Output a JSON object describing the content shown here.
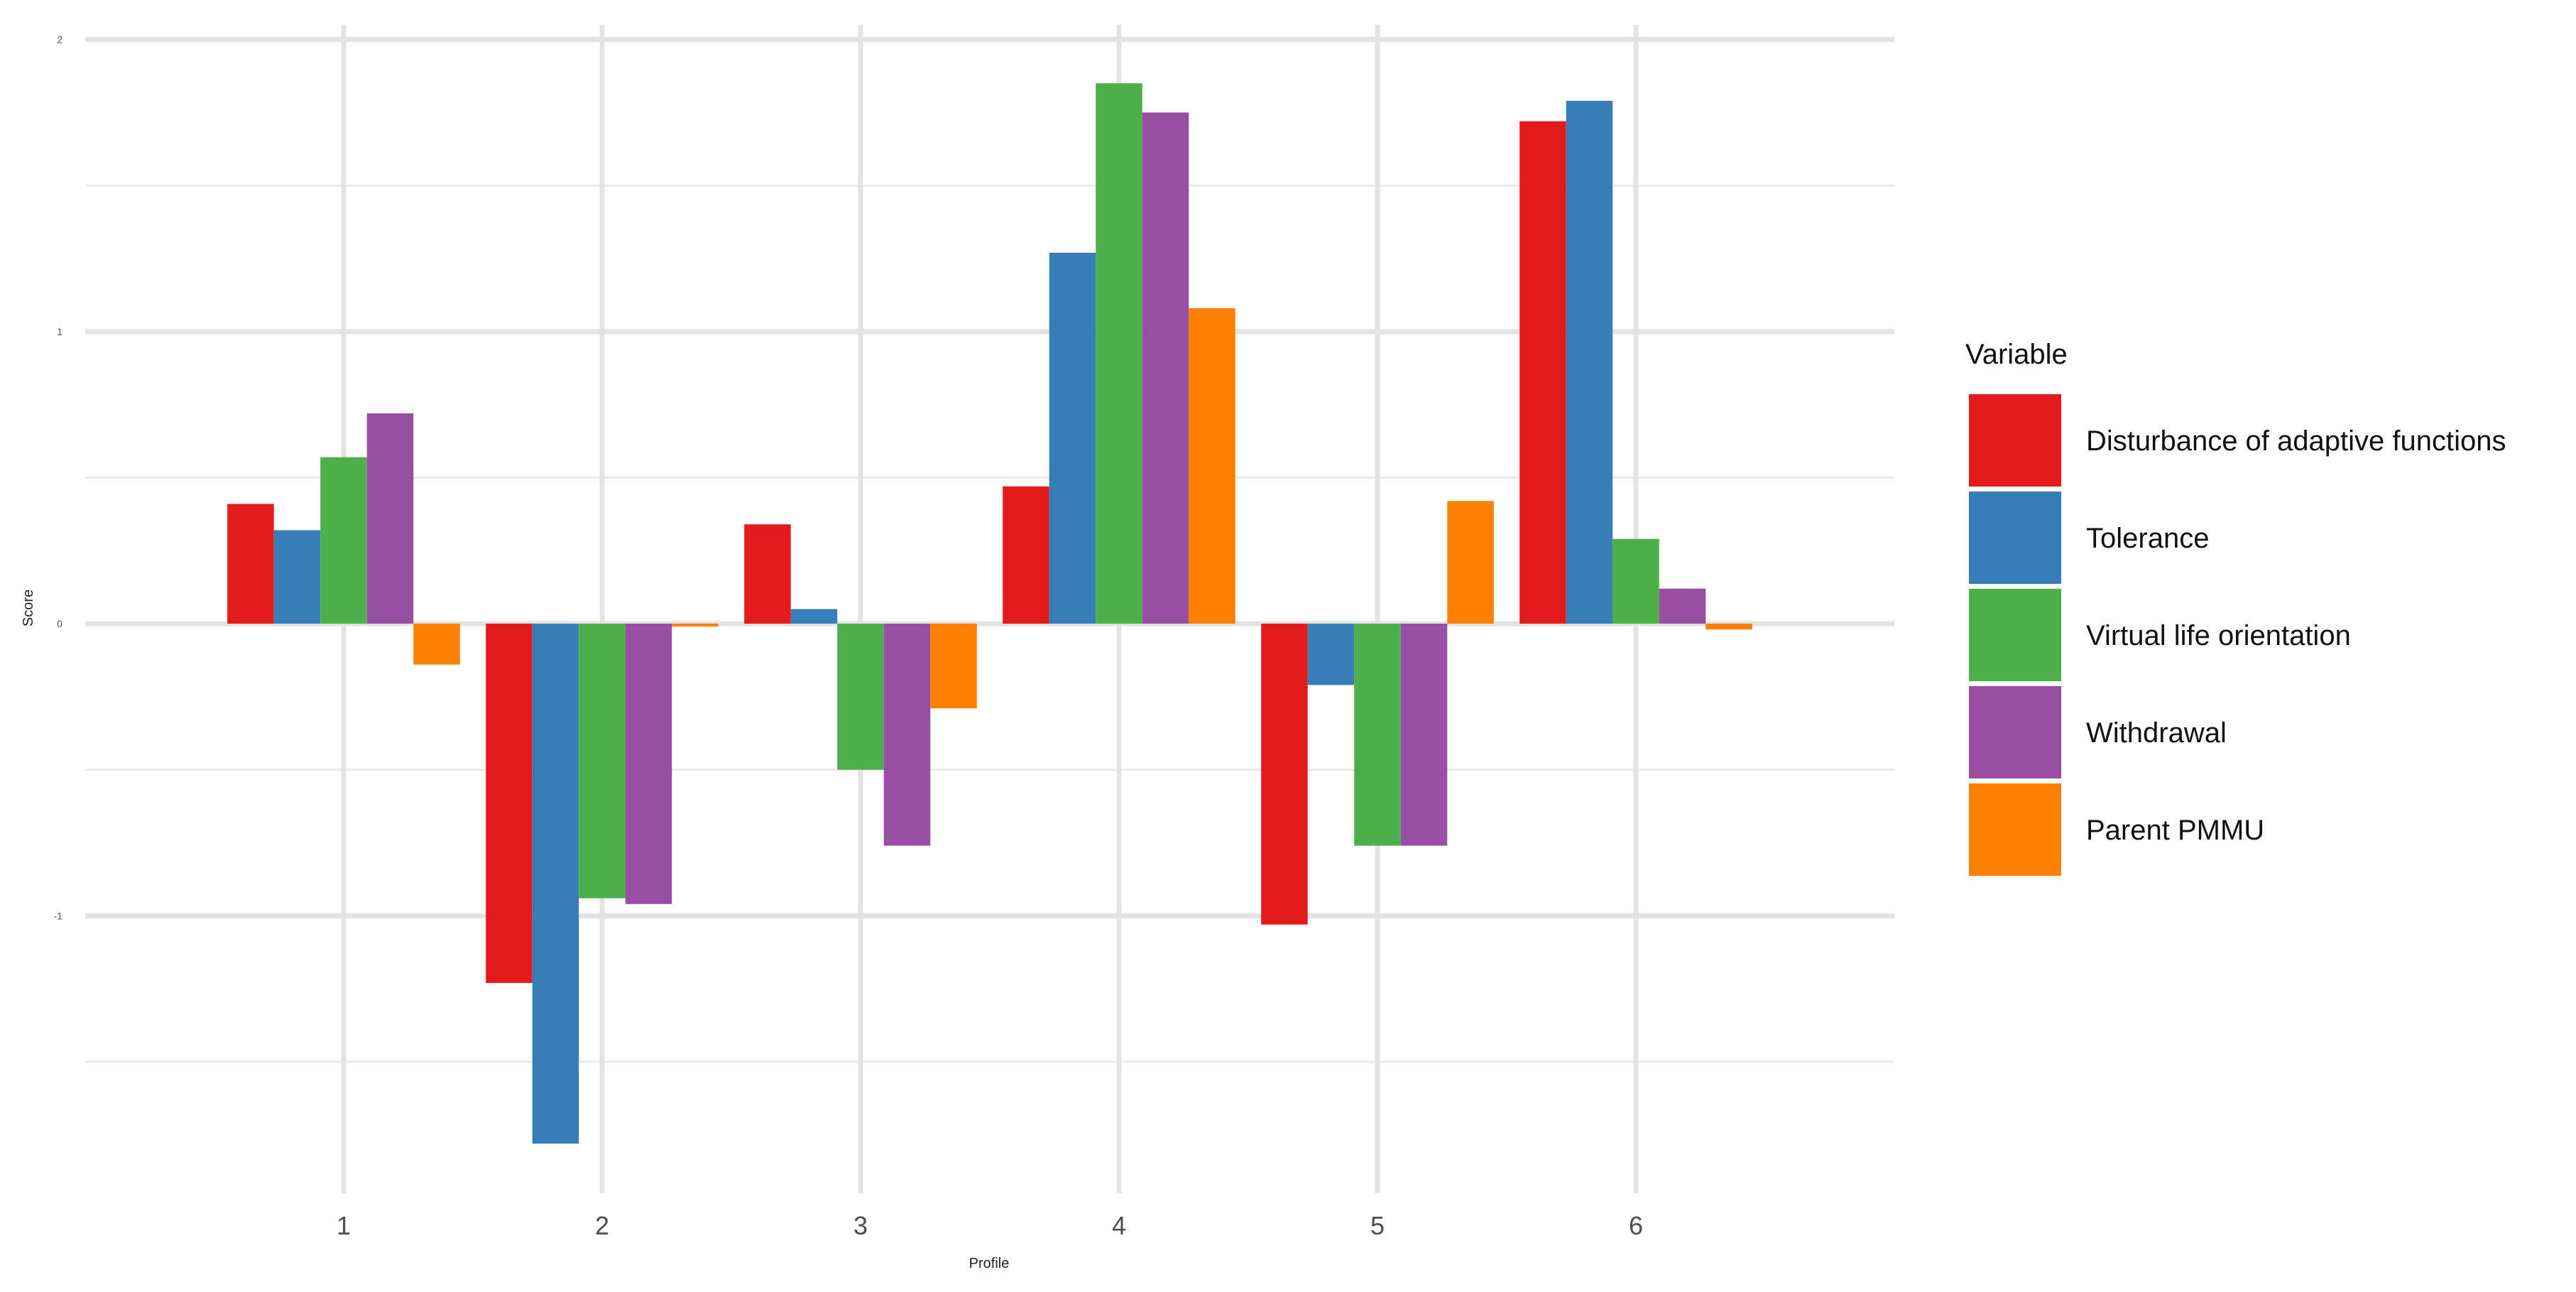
{
  "chart_data": {
    "type": "bar",
    "title": "",
    "xlabel": "Profile",
    "ylabel": "Score",
    "categories": [
      "1",
      "2",
      "3",
      "4",
      "5",
      "6"
    ],
    "ylim": [
      -1.95,
      2.05
    ],
    "y_ticks": [
      -1,
      0,
      1,
      2
    ],
    "y_tick_labels": [
      "-1",
      "0",
      "1",
      "2"
    ],
    "grid": true,
    "legend_title": "Variable",
    "legend_position": "right",
    "series": [
      {
        "name": "Disturbance of adaptive functions",
        "color": "#E41A1C",
        "values": [
          0.41,
          -1.23,
          0.34,
          0.47,
          -1.03,
          1.72
        ]
      },
      {
        "name": "Tolerance",
        "color": "#377EB8",
        "values": [
          0.32,
          -1.78,
          0.05,
          1.27,
          -0.21,
          1.79
        ]
      },
      {
        "name": "Virtual life orientation",
        "color": "#4DAF4A",
        "values": [
          0.57,
          -0.94,
          -0.5,
          1.85,
          -0.76,
          0.29
        ]
      },
      {
        "name": "Withdrawal",
        "color": "#984EA3",
        "values": [
          0.72,
          -0.96,
          -0.76,
          1.75,
          -0.76,
          0.12
        ]
      },
      {
        "name": "Parent PMMU",
        "color": "#FF7F00",
        "values": [
          -0.14,
          -0.01,
          -0.29,
          1.08,
          0.42,
          -0.02
        ]
      }
    ]
  }
}
